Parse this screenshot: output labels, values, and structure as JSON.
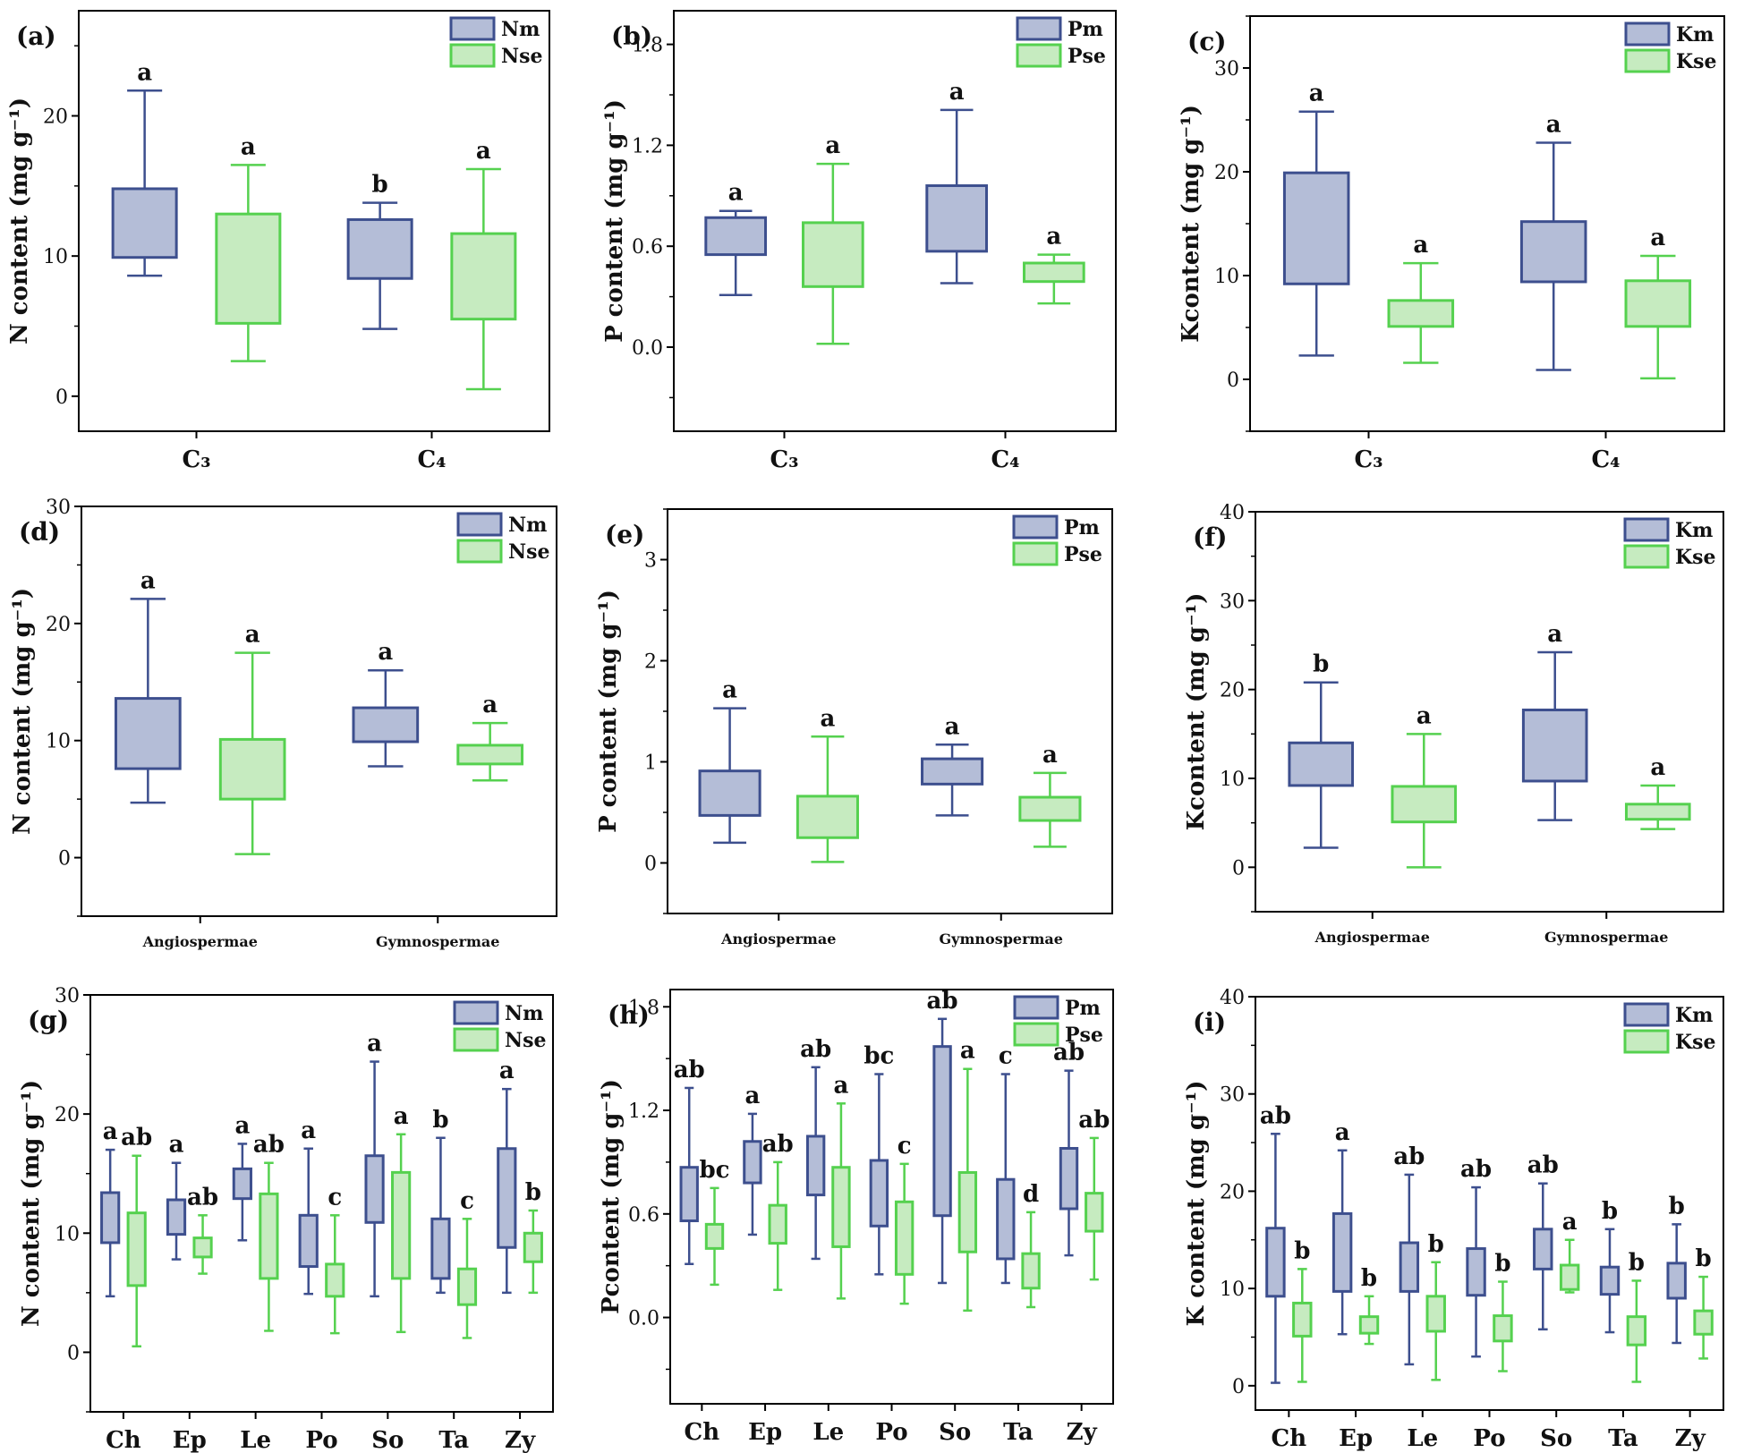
{
  "chart_data": [
    {
      "id": "a",
      "panel_label": "(a)",
      "type": "box",
      "ylabel": "N content  (mg g⁻¹)",
      "ylim": [
        -2.5,
        27.5
      ],
      "yticks": [
        0,
        10,
        20
      ],
      "categories": [
        "C₃",
        "C₄"
      ],
      "category_style": "large",
      "series": [
        {
          "name": "Nm",
          "color": "#3d4f8e",
          "fill": "#b4bdd7",
          "boxes": [
            {
              "whisker_low": 8.6,
              "q1": 9.9,
              "q3": 14.8,
              "whisker_high": 21.8,
              "sig": "a"
            },
            {
              "whisker_low": 4.8,
              "q1": 8.4,
              "q3": 12.6,
              "whisker_high": 13.8,
              "sig": "b"
            }
          ]
        },
        {
          "name": "Nse",
          "color": "#55d14f",
          "fill": "#c6ebc0",
          "boxes": [
            {
              "whisker_low": 2.5,
              "q1": 5.2,
              "q3": 13.0,
              "whisker_high": 16.5,
              "sig": "a"
            },
            {
              "whisker_low": 0.5,
              "q1": 5.5,
              "q3": 11.6,
              "whisker_high": 16.2,
              "sig": "a"
            }
          ]
        }
      ]
    },
    {
      "id": "b",
      "panel_label": "(b)",
      "type": "box",
      "ylabel": "P content  (mg g⁻¹)",
      "ylim": [
        -0.5,
        2.0
      ],
      "yticks": [
        0.0,
        0.6,
        1.2,
        1.8
      ],
      "categories": [
        "C₃",
        "C₄"
      ],
      "category_style": "large",
      "series": [
        {
          "name": "Pm",
          "color": "#3d4f8e",
          "fill": "#b4bdd7",
          "boxes": [
            {
              "whisker_low": 0.31,
              "q1": 0.55,
              "q3": 0.77,
              "whisker_high": 0.81,
              "sig": "a"
            },
            {
              "whisker_low": 0.38,
              "q1": 0.57,
              "q3": 0.96,
              "whisker_high": 1.41,
              "sig": "a"
            }
          ]
        },
        {
          "name": "Pse",
          "color": "#55d14f",
          "fill": "#c6ebc0",
          "boxes": [
            {
              "whisker_low": 0.02,
              "q1": 0.36,
              "q3": 0.74,
              "whisker_high": 1.09,
              "sig": "a"
            },
            {
              "whisker_low": 0.26,
              "q1": 0.39,
              "q3": 0.5,
              "whisker_high": 0.55,
              "sig": "a"
            }
          ]
        }
      ]
    },
    {
      "id": "c",
      "panel_label": "(c)",
      "type": "box",
      "ylabel": "Kcontent  (mg g⁻¹)",
      "ylim": [
        -5,
        35
      ],
      "yticks": [
        0,
        10,
        20,
        30
      ],
      "categories": [
        "C₃",
        "C₄"
      ],
      "category_style": "large",
      "series": [
        {
          "name": "Km",
          "color": "#3d4f8e",
          "fill": "#b4bdd7",
          "boxes": [
            {
              "whisker_low": 2.3,
              "q1": 9.2,
              "q3": 19.9,
              "whisker_high": 25.8,
              "sig": "a"
            },
            {
              "whisker_low": 0.9,
              "q1": 9.4,
              "q3": 15.2,
              "whisker_high": 22.8,
              "sig": "a"
            }
          ]
        },
        {
          "name": "Kse",
          "color": "#55d14f",
          "fill": "#c6ebc0",
          "boxes": [
            {
              "whisker_low": 1.6,
              "q1": 5.1,
              "q3": 7.6,
              "whisker_high": 11.2,
              "sig": "a"
            },
            {
              "whisker_low": 0.1,
              "q1": 5.1,
              "q3": 9.5,
              "whisker_high": 11.9,
              "sig": "a"
            }
          ]
        }
      ]
    },
    {
      "id": "d",
      "panel_label": "(d)",
      "type": "box",
      "ylabel": "N content  (mg g⁻¹)",
      "ylim": [
        -5,
        30
      ],
      "yticks": [
        0,
        10,
        20,
        30
      ],
      "categories": [
        "Angiospermae",
        "Gymnospermae"
      ],
      "category_style": "small",
      "series": [
        {
          "name": "Nm",
          "color": "#3d4f8e",
          "fill": "#b4bdd7",
          "boxes": [
            {
              "whisker_low": 4.7,
              "q1": 7.6,
              "q3": 13.6,
              "whisker_high": 22.1,
              "sig": "a"
            },
            {
              "whisker_low": 7.8,
              "q1": 9.9,
              "q3": 12.8,
              "whisker_high": 16.0,
              "sig": "a"
            }
          ]
        },
        {
          "name": "Nse",
          "color": "#55d14f",
          "fill": "#c6ebc0",
          "boxes": [
            {
              "whisker_low": 0.3,
              "q1": 5.0,
              "q3": 10.1,
              "whisker_high": 17.5,
              "sig": "a"
            },
            {
              "whisker_low": 6.6,
              "q1": 8.0,
              "q3": 9.6,
              "whisker_high": 11.5,
              "sig": "a"
            }
          ]
        }
      ]
    },
    {
      "id": "e",
      "panel_label": "(e)",
      "type": "box",
      "ylabel": "P content  (mg g⁻¹)",
      "ylim": [
        -0.5,
        3.5
      ],
      "yticks": [
        0,
        1,
        2,
        3
      ],
      "categories": [
        "Angiospermae",
        "Gymnospermae"
      ],
      "category_style": "small",
      "series": [
        {
          "name": "Pm",
          "color": "#3d4f8e",
          "fill": "#b4bdd7",
          "boxes": [
            {
              "whisker_low": 0.2,
              "q1": 0.47,
              "q3": 0.91,
              "whisker_high": 1.53,
              "sig": "a"
            },
            {
              "whisker_low": 0.47,
              "q1": 0.78,
              "q3": 1.03,
              "whisker_high": 1.17,
              "sig": "a"
            }
          ]
        },
        {
          "name": "Pse",
          "color": "#55d14f",
          "fill": "#c6ebc0",
          "boxes": [
            {
              "whisker_low": 0.01,
              "q1": 0.25,
              "q3": 0.66,
              "whisker_high": 1.25,
              "sig": "a"
            },
            {
              "whisker_low": 0.16,
              "q1": 0.42,
              "q3": 0.65,
              "whisker_high": 0.89,
              "sig": "a"
            }
          ]
        }
      ]
    },
    {
      "id": "f",
      "panel_label": "(f)",
      "type": "box",
      "ylabel": "Kcontent  (mg g⁻¹)",
      "ylim": [
        -5,
        40
      ],
      "yticks": [
        0,
        10,
        20,
        30,
        40
      ],
      "categories": [
        "Angiospermae",
        "Gymnospermae"
      ],
      "category_style": "small",
      "series": [
        {
          "name": "Km",
          "color": "#3d4f8e",
          "fill": "#b4bdd7",
          "boxes": [
            {
              "whisker_low": 2.2,
              "q1": 9.2,
              "q3": 14.0,
              "whisker_high": 20.8,
              "sig": "b"
            },
            {
              "whisker_low": 5.3,
              "q1": 9.7,
              "q3": 17.7,
              "whisker_high": 24.2,
              "sig": "a"
            }
          ]
        },
        {
          "name": "Kse",
          "color": "#55d14f",
          "fill": "#c6ebc0",
          "boxes": [
            {
              "whisker_low": 0.0,
              "q1": 5.1,
              "q3": 9.1,
              "whisker_high": 15.0,
              "sig": "a"
            },
            {
              "whisker_low": 4.3,
              "q1": 5.4,
              "q3": 7.1,
              "whisker_high": 9.2,
              "sig": "a"
            }
          ]
        }
      ]
    },
    {
      "id": "g",
      "panel_label": "(g)",
      "type": "box",
      "ylabel": "N content  (mg g⁻¹)",
      "ylim": [
        -5,
        30
      ],
      "yticks": [
        0,
        10,
        20,
        30
      ],
      "categories": [
        "Ch",
        "Ep",
        "Le",
        "Po",
        "So",
        "Ta",
        "Zy"
      ],
      "category_style": "medium",
      "series": [
        {
          "name": "Nm",
          "color": "#3d4f8e",
          "fill": "#b4bdd7",
          "boxes": [
            {
              "whisker_low": 4.7,
              "q1": 9.2,
              "q3": 13.4,
              "whisker_high": 17.0,
              "sig": "a"
            },
            {
              "whisker_low": 7.8,
              "q1": 9.9,
              "q3": 12.8,
              "whisker_high": 15.9,
              "sig": "a"
            },
            {
              "whisker_low": 9.4,
              "q1": 12.9,
              "q3": 15.4,
              "whisker_high": 17.5,
              "sig": "a"
            },
            {
              "whisker_low": 4.9,
              "q1": 7.2,
              "q3": 11.5,
              "whisker_high": 17.1,
              "sig": "a"
            },
            {
              "whisker_low": 4.7,
              "q1": 10.9,
              "q3": 16.5,
              "whisker_high": 24.4,
              "sig": "a"
            },
            {
              "whisker_low": 5.0,
              "q1": 6.2,
              "q3": 11.2,
              "whisker_high": 18.0,
              "sig": "b"
            },
            {
              "whisker_low": 5.0,
              "q1": 8.8,
              "q3": 17.1,
              "whisker_high": 22.1,
              "sig": "a"
            }
          ]
        },
        {
          "name": "Nse",
          "color": "#55d14f",
          "fill": "#c6ebc0",
          "boxes": [
            {
              "whisker_low": 0.5,
              "q1": 5.6,
              "q3": 11.7,
              "whisker_high": 16.5,
              "sig": "ab"
            },
            {
              "whisker_low": 6.6,
              "q1": 8.0,
              "q3": 9.6,
              "whisker_high": 11.5,
              "sig": "ab"
            },
            {
              "whisker_low": 1.8,
              "q1": 6.2,
              "q3": 13.3,
              "whisker_high": 15.9,
              "sig": "ab"
            },
            {
              "whisker_low": 1.6,
              "q1": 4.7,
              "q3": 7.4,
              "whisker_high": 11.5,
              "sig": "c"
            },
            {
              "whisker_low": 1.7,
              "q1": 6.2,
              "q3": 15.1,
              "whisker_high": 18.3,
              "sig": "a"
            },
            {
              "whisker_low": 1.2,
              "q1": 4.0,
              "q3": 7.0,
              "whisker_high": 11.2,
              "sig": "c"
            },
            {
              "whisker_low": 5.0,
              "q1": 7.6,
              "q3": 10.0,
              "whisker_high": 11.9,
              "sig": "b"
            }
          ]
        }
      ]
    },
    {
      "id": "h",
      "panel_label": "(h)",
      "type": "box",
      "ylabel": "Pcontent  (mg g⁻¹)",
      "ylim": [
        -0.5,
        1.9
      ],
      "yticks": [
        0.0,
        0.6,
        1.2,
        1.8
      ],
      "categories": [
        "Ch",
        "Ep",
        "Le",
        "Po",
        "So",
        "Ta",
        "Zy"
      ],
      "category_style": "medium",
      "series": [
        {
          "name": "Pm",
          "color": "#3d4f8e",
          "fill": "#b4bdd7",
          "boxes": [
            {
              "whisker_low": 0.31,
              "q1": 0.56,
              "q3": 0.87,
              "whisker_high": 1.33,
              "sig": "ab"
            },
            {
              "whisker_low": 0.48,
              "q1": 0.78,
              "q3": 1.02,
              "whisker_high": 1.18,
              "sig": "a"
            },
            {
              "whisker_low": 0.34,
              "q1": 0.71,
              "q3": 1.05,
              "whisker_high": 1.45,
              "sig": "ab"
            },
            {
              "whisker_low": 0.25,
              "q1": 0.53,
              "q3": 0.91,
              "whisker_high": 1.41,
              "sig": "bc"
            },
            {
              "whisker_low": 0.2,
              "q1": 0.59,
              "q3": 1.57,
              "whisker_high": 1.73,
              "sig": "ab"
            },
            {
              "whisker_low": 0.2,
              "q1": 0.34,
              "q3": 0.8,
              "whisker_high": 1.41,
              "sig": "c"
            },
            {
              "whisker_low": 0.36,
              "q1": 0.63,
              "q3": 0.98,
              "whisker_high": 1.43,
              "sig": "ab"
            }
          ]
        },
        {
          "name": "Pse",
          "color": "#55d14f",
          "fill": "#c6ebc0",
          "boxes": [
            {
              "whisker_low": 0.19,
              "q1": 0.4,
              "q3": 0.54,
              "whisker_high": 0.75,
              "sig": "bc"
            },
            {
              "whisker_low": 0.16,
              "q1": 0.43,
              "q3": 0.65,
              "whisker_high": 0.9,
              "sig": "ab"
            },
            {
              "whisker_low": 0.11,
              "q1": 0.41,
              "q3": 0.87,
              "whisker_high": 1.24,
              "sig": "a"
            },
            {
              "whisker_low": 0.08,
              "q1": 0.25,
              "q3": 0.67,
              "whisker_high": 0.89,
              "sig": "c"
            },
            {
              "whisker_low": 0.04,
              "q1": 0.38,
              "q3": 0.84,
              "whisker_high": 1.44,
              "sig": "a"
            },
            {
              "whisker_low": 0.06,
              "q1": 0.17,
              "q3": 0.37,
              "whisker_high": 0.61,
              "sig": "d"
            },
            {
              "whisker_low": 0.22,
              "q1": 0.5,
              "q3": 0.72,
              "whisker_high": 1.04,
              "sig": "ab"
            }
          ]
        }
      ]
    },
    {
      "id": "i",
      "panel_label": "(i)",
      "type": "box",
      "ylabel": "K content  (mg g⁻¹)",
      "ylim": [
        -2.5,
        40
      ],
      "yticks": [
        0,
        10,
        20,
        30,
        40
      ],
      "categories": [
        "Ch",
        "Ep",
        "Le",
        "Po",
        "So",
        "Ta",
        "Zy"
      ],
      "category_style": "medium",
      "series": [
        {
          "name": "Km",
          "color": "#3d4f8e",
          "fill": "#b4bdd7",
          "boxes": [
            {
              "whisker_low": 0.3,
              "q1": 9.2,
              "q3": 16.2,
              "whisker_high": 25.9,
              "sig": "ab"
            },
            {
              "whisker_low": 5.3,
              "q1": 9.7,
              "q3": 17.7,
              "whisker_high": 24.2,
              "sig": "a"
            },
            {
              "whisker_low": 2.2,
              "q1": 9.7,
              "q3": 14.7,
              "whisker_high": 21.7,
              "sig": "ab"
            },
            {
              "whisker_low": 3.0,
              "q1": 9.3,
              "q3": 14.1,
              "whisker_high": 20.4,
              "sig": "ab"
            },
            {
              "whisker_low": 5.8,
              "q1": 12.0,
              "q3": 16.1,
              "whisker_high": 20.8,
              "sig": "ab"
            },
            {
              "whisker_low": 5.5,
              "q1": 9.4,
              "q3": 12.2,
              "whisker_high": 16.1,
              "sig": "b"
            },
            {
              "whisker_low": 4.4,
              "q1": 9.0,
              "q3": 12.6,
              "whisker_high": 16.6,
              "sig": "b"
            }
          ]
        },
        {
          "name": "Kse",
          "color": "#55d14f",
          "fill": "#c6ebc0",
          "boxes": [
            {
              "whisker_low": 0.4,
              "q1": 5.1,
              "q3": 8.5,
              "whisker_high": 12.0,
              "sig": "b"
            },
            {
              "whisker_low": 4.3,
              "q1": 5.4,
              "q3": 7.1,
              "whisker_high": 9.2,
              "sig": "b"
            },
            {
              "whisker_low": 0.6,
              "q1": 5.6,
              "q3": 9.2,
              "whisker_high": 12.7,
              "sig": "b"
            },
            {
              "whisker_low": 1.5,
              "q1": 4.6,
              "q3": 7.2,
              "whisker_high": 10.7,
              "sig": "b"
            },
            {
              "whisker_low": 9.6,
              "q1": 9.9,
              "q3": 12.4,
              "whisker_high": 15.0,
              "sig": "a"
            },
            {
              "whisker_low": 0.4,
              "q1": 4.2,
              "q3": 7.1,
              "whisker_high": 10.8,
              "sig": "b"
            },
            {
              "whisker_low": 2.8,
              "q1": 5.3,
              "q3": 7.7,
              "whisker_high": 11.2,
              "sig": "b"
            }
          ]
        }
      ]
    }
  ]
}
